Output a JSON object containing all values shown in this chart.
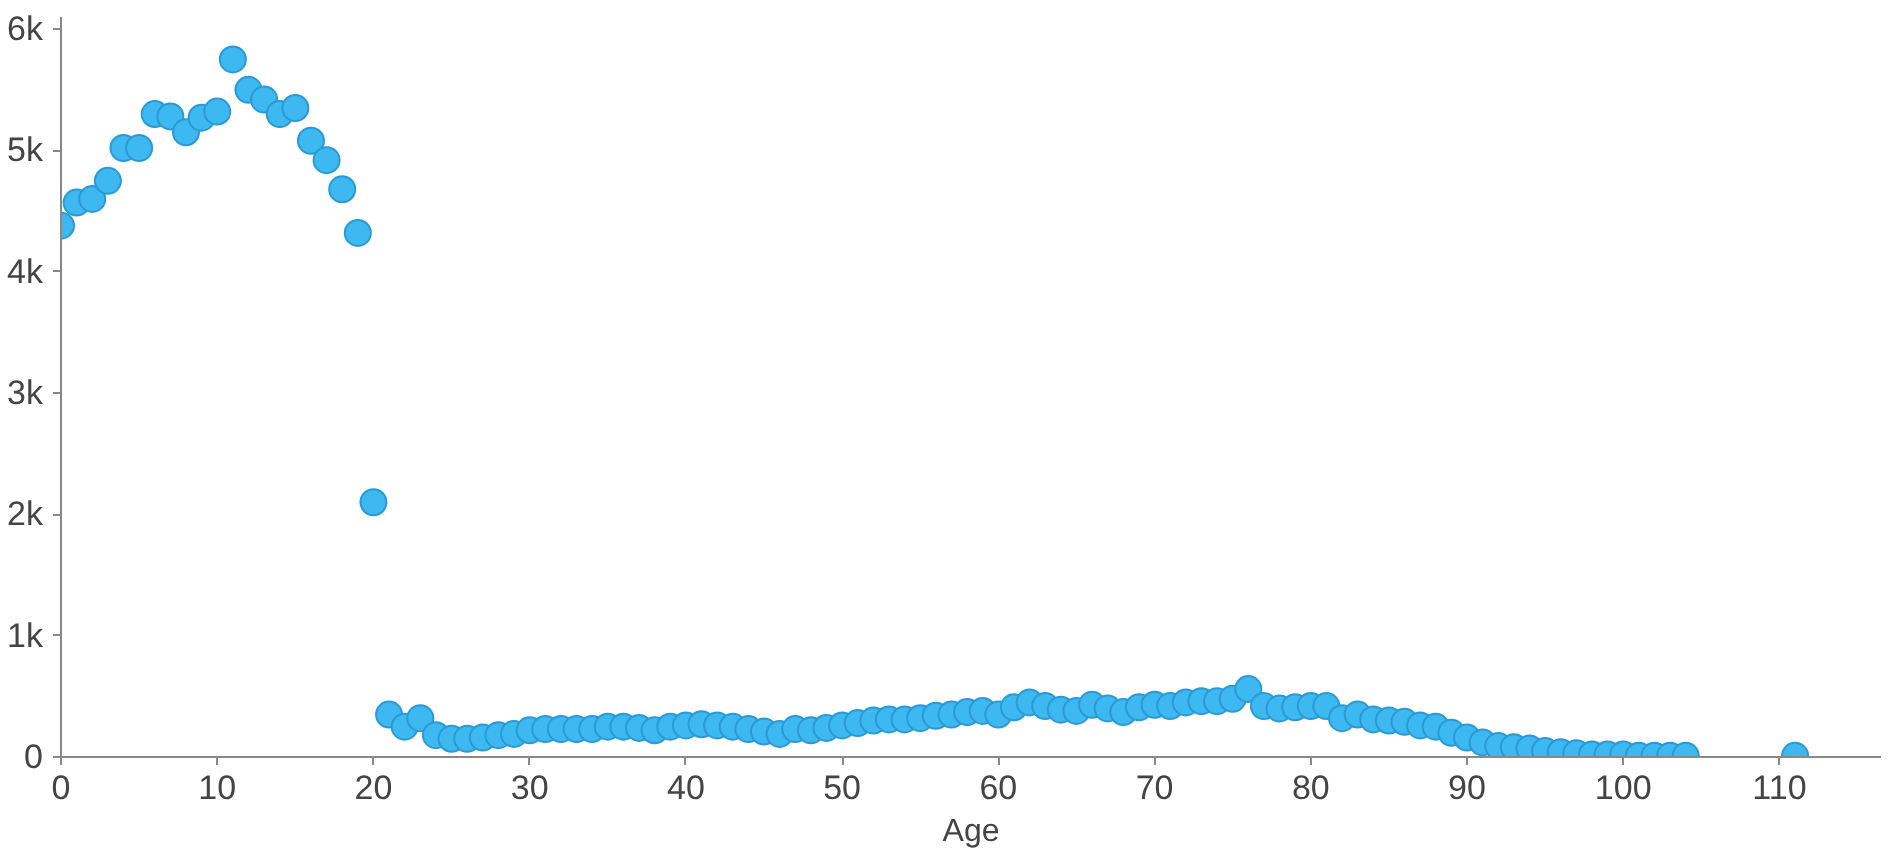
{
  "chart_data": {
    "type": "scatter",
    "xlabel": "Age",
    "marker": "circle",
    "grid": false,
    "xlim": [
      0,
      116.5
    ],
    "ylim": [
      0,
      6100
    ],
    "xticks": [
      0,
      10,
      20,
      30,
      40,
      50,
      60,
      70,
      80,
      90,
      100,
      110
    ],
    "yticks": [
      {
        "value": 0,
        "label": "0"
      },
      {
        "value": 1000,
        "label": "1k"
      },
      {
        "value": 2000,
        "label": "2k"
      },
      {
        "value": 3000,
        "label": "3k"
      },
      {
        "value": 4000,
        "label": "4k"
      },
      {
        "value": 5000,
        "label": "5k"
      },
      {
        "value": 6000,
        "label": "6k"
      }
    ],
    "series": [
      {
        "color": "#3db8f0",
        "x": [
          0,
          1,
          2,
          3,
          4,
          5,
          6,
          7,
          8,
          9,
          10,
          11,
          12,
          13,
          14,
          15,
          16,
          17,
          18,
          19,
          20,
          21,
          22,
          23,
          24,
          25,
          26,
          27,
          28,
          29,
          30,
          31,
          32,
          33,
          34,
          35,
          36,
          37,
          38,
          39,
          40,
          41,
          42,
          43,
          44,
          45,
          46,
          47,
          48,
          49,
          50,
          51,
          52,
          53,
          54,
          55,
          56,
          57,
          58,
          59,
          60,
          61,
          62,
          63,
          64,
          65,
          66,
          67,
          68,
          69,
          70,
          71,
          72,
          73,
          74,
          75,
          76,
          77,
          78,
          79,
          80,
          81,
          82,
          83,
          84,
          85,
          86,
          87,
          88,
          89,
          90,
          91,
          92,
          93,
          94,
          95,
          96,
          97,
          98,
          99,
          100,
          101,
          102,
          103,
          104,
          111
        ],
        "values": [
          4380,
          4570,
          4600,
          4750,
          5020,
          5020,
          5300,
          5280,
          5150,
          5270,
          5320,
          5750,
          5500,
          5420,
          5300,
          5350,
          5080,
          4920,
          4680,
          4320,
          2100,
          350,
          250,
          320,
          180,
          150,
          150,
          160,
          180,
          190,
          220,
          230,
          230,
          230,
          230,
          250,
          250,
          240,
          220,
          250,
          260,
          270,
          260,
          250,
          230,
          210,
          190,
          230,
          220,
          240,
          260,
          280,
          300,
          310,
          310,
          320,
          340,
          350,
          370,
          380,
          350,
          410,
          450,
          420,
          390,
          380,
          430,
          400,
          370,
          410,
          430,
          420,
          450,
          460,
          460,
          480,
          560,
          420,
          400,
          410,
          420,
          420,
          320,
          350,
          310,
          300,
          290,
          260,
          250,
          200,
          160,
          120,
          90,
          80,
          70,
          50,
          40,
          30,
          20,
          20,
          20,
          10,
          10,
          10,
          10,
          10
        ]
      }
    ]
  }
}
